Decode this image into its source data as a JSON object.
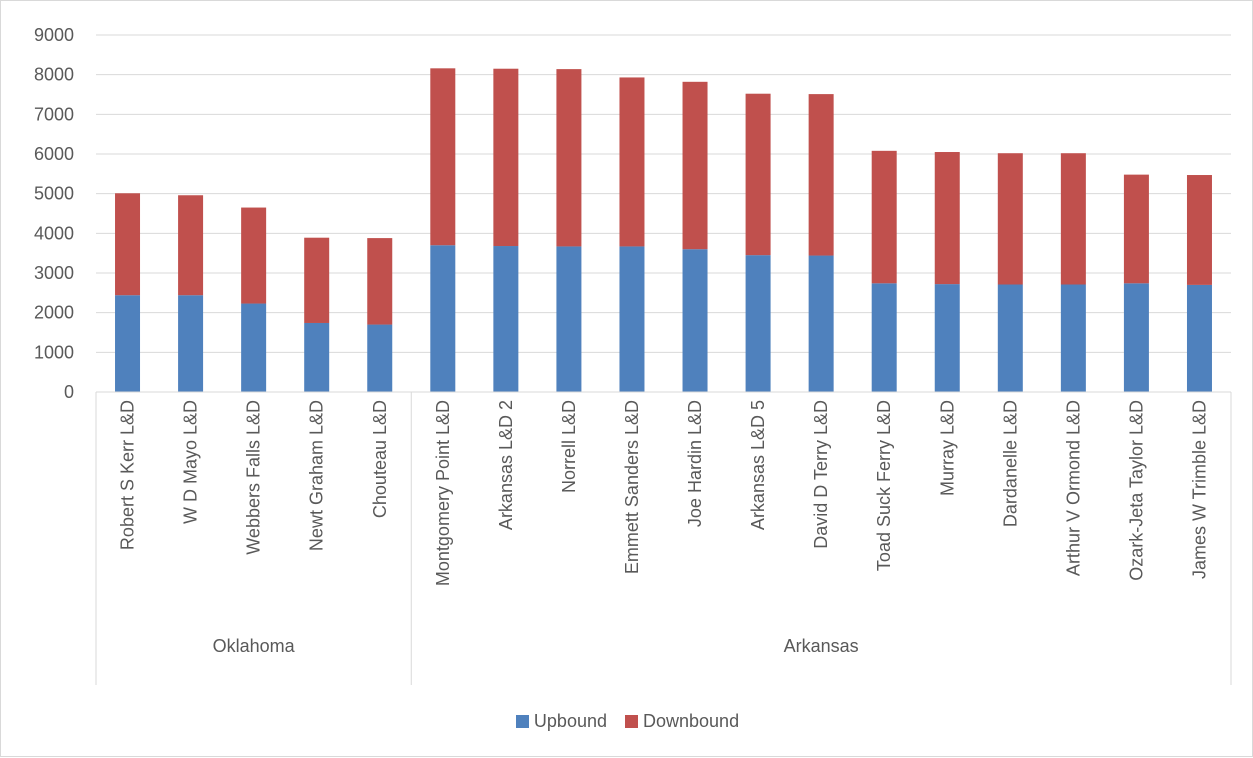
{
  "chart_data": {
    "type": "bar",
    "stacked": true,
    "title": "",
    "xlabel": "",
    "ylabel": "",
    "ylim": [
      0,
      9000
    ],
    "yticks": [
      0,
      1000,
      2000,
      3000,
      4000,
      5000,
      6000,
      7000,
      8000,
      9000
    ],
    "grid": true,
    "legend": "bottom",
    "groups": [
      {
        "label": "Oklahoma",
        "count": 5
      },
      {
        "label": "Arkansas",
        "count": 13
      }
    ],
    "categories": [
      "Robert S Kerr L&D",
      "W D Mayo L&D",
      "Webbers Falls L&D",
      "Newt Graham L&D",
      "Chouteau L&D",
      "Montgomery Point L&D",
      "Arkansas L&D 2",
      "Norrell L&D",
      "Emmett Sanders L&D",
      "Joe Hardin L&D",
      "Arkansas L&D 5",
      "David D Terry L&D",
      "Toad Suck Ferry L&D",
      "Murray L&D",
      "Dardanelle L&D",
      "Arthur V Ormond L&D",
      "Ozark-Jeta Taylor L&D",
      "James W Trimble L&D"
    ],
    "series": [
      {
        "name": "Upbound",
        "color": "#4f81bd",
        "values": [
          2440,
          2440,
          2230,
          1740,
          1700,
          3700,
          3680,
          3670,
          3670,
          3600,
          3450,
          3440,
          2740,
          2720,
          2710,
          2710,
          2740,
          2700
        ]
      },
      {
        "name": "Downbound",
        "color": "#c0504d",
        "values": [
          2570,
          2520,
          2420,
          2150,
          2180,
          4460,
          4470,
          4470,
          4260,
          4220,
          4070,
          4070,
          3340,
          3330,
          3310,
          3310,
          2740,
          2770
        ]
      }
    ]
  }
}
